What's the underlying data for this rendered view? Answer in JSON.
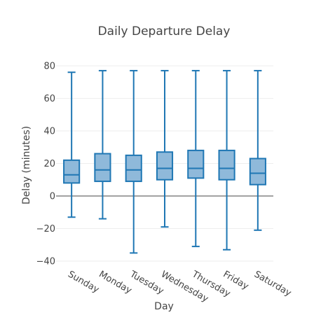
{
  "chart_data": {
    "type": "box",
    "title": "Daily Departure Delay",
    "xlabel": "Day",
    "ylabel": "Delay (minutes)",
    "ylim": [
      -43,
      86
    ],
    "yticks": [
      -40,
      -20,
      0,
      20,
      40,
      60,
      80
    ],
    "grid": true,
    "colors": {
      "stroke": "#1f77b4",
      "fill": "#8fb9da"
    },
    "categories": [
      "Sunday",
      "Monday",
      "Tuesday",
      "Wednesday",
      "Thursday",
      "Friday",
      "Saturday"
    ],
    "series": [
      {
        "values": [
          {
            "min": -13,
            "q1": 8,
            "median": 13,
            "q3": 22,
            "max": 76
          },
          {
            "min": -14,
            "q1": 9,
            "median": 16,
            "q3": 26,
            "max": 77
          },
          {
            "min": -35,
            "q1": 9,
            "median": 16,
            "q3": 25,
            "max": 77
          },
          {
            "min": -19,
            "q1": 10,
            "median": 17,
            "q3": 27,
            "max": 77
          },
          {
            "min": -31,
            "q1": 11,
            "median": 17,
            "q3": 28,
            "max": 77
          },
          {
            "min": -33,
            "q1": 10,
            "median": 17,
            "q3": 28,
            "max": 77
          },
          {
            "min": -21,
            "q1": 7,
            "median": 14,
            "q3": 23,
            "max": 77
          }
        ]
      }
    ]
  }
}
